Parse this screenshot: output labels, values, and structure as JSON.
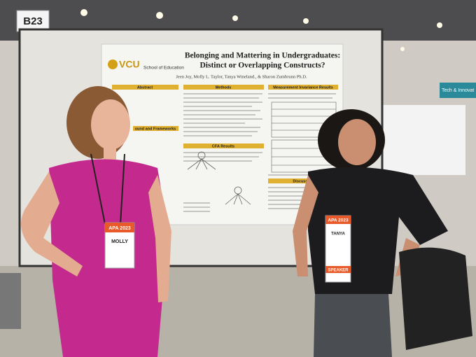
{
  "sign": {
    "booth": "B23",
    "banner": "Tech & Innovat"
  },
  "poster": {
    "logo": "VCU",
    "school": "School of Education",
    "title": [
      "Belonging and Mattering in Undergraduates:",
      "Distinct or Overlapping Constructs?"
    ],
    "authors": "Jeen Joy, Molly L. Taylor, Tanya Wineland., & Sharon Zumbrunn Ph.D.",
    "sections": [
      "Abstract",
      "Methods",
      "Measurement Invariance Results",
      "ound and Frameworks",
      "CFA Results",
      "Discussion"
    ]
  },
  "badges": [
    {
      "event": "APA 2023",
      "name": "MOLLY"
    },
    {
      "event": "APA 2023",
      "name": "TANYA",
      "role": "SPEAKER"
    }
  ]
}
